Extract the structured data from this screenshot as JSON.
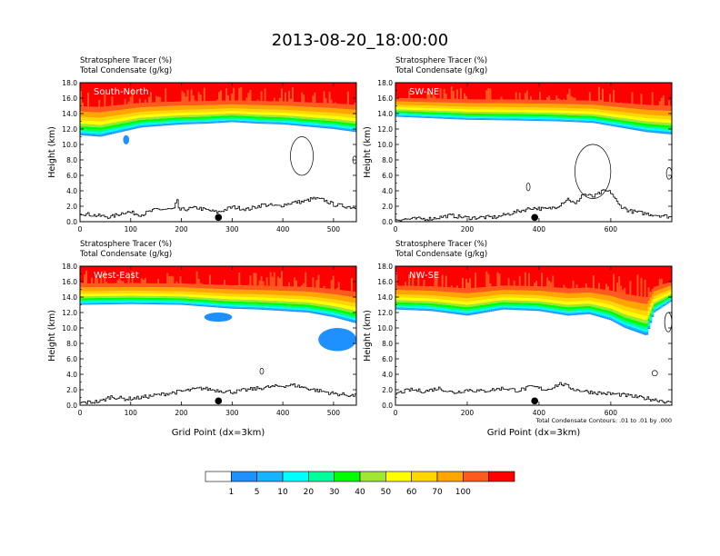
{
  "title": "2013-08-20_18:00:00",
  "colors": {
    "bands": [
      "#ffffff",
      "#1e90ff",
      "#14b4ff",
      "#00ffff",
      "#00ff9c",
      "#00ff00",
      "#a0e632",
      "#ffff00",
      "#ffd700",
      "#ffa500",
      "#ff5a1e",
      "#ff0000"
    ]
  },
  "chart_data": [
    {
      "type": "heatmap",
      "panel_label": "South-North",
      "subtitle_line1": "Stratosphere Tracer   (%)",
      "subtitle_line2": "Total Condensate   (g/kg)",
      "ylabel": "Height (km)",
      "xlabel": "",
      "xlim": [
        0,
        545
      ],
      "ylim": [
        0,
        18
      ],
      "xticks": [
        0,
        100,
        200,
        300,
        400,
        500
      ],
      "yticks": [
        "0.0",
        "2.0",
        "4.0",
        "6.0",
        "8.0",
        "10.0",
        "12.0",
        "14.0",
        "16.0",
        "18.0"
      ],
      "tracer_base_km": [
        [
          0,
          11.2
        ],
        [
          40,
          11.0
        ],
        [
          80,
          11.6
        ],
        [
          120,
          12.2
        ],
        [
          200,
          12.6
        ],
        [
          250,
          12.7
        ],
        [
          300,
          12.9
        ],
        [
          350,
          12.7
        ],
        [
          400,
          12.6
        ],
        [
          450,
          12.3
        ],
        [
          500,
          12.0
        ],
        [
          545,
          11.6
        ]
      ],
      "tracer_top_km": [
        [
          0,
          16.2
        ],
        [
          100,
          16.5
        ],
        [
          300,
          16.8
        ],
        [
          545,
          16.5
        ]
      ],
      "terrain_km": [
        [
          0,
          1.1
        ],
        [
          30,
          0.8
        ],
        [
          60,
          0.6
        ],
        [
          90,
          1.3
        ],
        [
          120,
          0.9
        ],
        [
          150,
          1.6
        ],
        [
          185,
          1.6
        ],
        [
          190,
          2.8
        ],
        [
          195,
          1.5
        ],
        [
          230,
          1.8
        ],
        [
          270,
          1.2
        ],
        [
          300,
          1.9
        ],
        [
          330,
          1.6
        ],
        [
          360,
          2.2
        ],
        [
          390,
          2.0
        ],
        [
          420,
          2.5
        ],
        [
          440,
          2.6
        ],
        [
          460,
          3.0
        ],
        [
          480,
          2.8
        ],
        [
          500,
          2.2
        ],
        [
          545,
          1.8
        ]
      ],
      "condensate_features": [
        {
          "kind": "cloud",
          "x": [
            85,
            97
          ],
          "z": [
            10.0,
            11.2
          ]
        },
        {
          "kind": "contour",
          "x": [
            415,
            460
          ],
          "z": [
            6.0,
            11.0
          ]
        },
        {
          "kind": "contour",
          "x": [
            538,
            545
          ],
          "z": [
            7.5,
            8.5
          ]
        }
      ],
      "marker_x": 273
    },
    {
      "type": "heatmap",
      "panel_label": "SW-NE",
      "subtitle_line1": "Stratosphere Tracer   (%)",
      "subtitle_line2": "Total Condensate   (g/kg)",
      "ylabel": "Height (km)",
      "xlabel": "",
      "xlim": [
        0,
        770
      ],
      "ylim": [
        0,
        18
      ],
      "xticks": [
        0,
        200,
        400,
        600
      ],
      "yticks": [
        "0.0",
        "2.0",
        "4.0",
        "6.0",
        "8.0",
        "10.0",
        "12.0",
        "14.0",
        "16.0",
        "18.0"
      ],
      "tracer_base_km": [
        [
          0,
          13.6
        ],
        [
          100,
          13.4
        ],
        [
          200,
          13.2
        ],
        [
          350,
          13.1
        ],
        [
          450,
          13.0
        ],
        [
          550,
          12.8
        ],
        [
          600,
          12.4
        ],
        [
          650,
          12.0
        ],
        [
          700,
          11.6
        ],
        [
          770,
          11.3
        ]
      ],
      "tracer_top_km": [
        [
          0,
          16.6
        ],
        [
          300,
          16.8
        ],
        [
          770,
          16.4
        ]
      ],
      "terrain_km": [
        [
          0,
          0.3
        ],
        [
          100,
          0.4
        ],
        [
          150,
          0.8
        ],
        [
          200,
          0.5
        ],
        [
          280,
          0.6
        ],
        [
          330,
          1.2
        ],
        [
          380,
          1.8
        ],
        [
          420,
          1.6
        ],
        [
          450,
          2.0
        ],
        [
          480,
          3.0
        ],
        [
          500,
          2.2
        ],
        [
          520,
          3.6
        ],
        [
          550,
          3.2
        ],
        [
          580,
          4.0
        ],
        [
          600,
          3.8
        ],
        [
          620,
          2.2
        ],
        [
          650,
          1.4
        ],
        [
          700,
          1.0
        ],
        [
          740,
          0.8
        ],
        [
          770,
          0.6
        ]
      ],
      "condensate_features": [
        {
          "kind": "contour",
          "x": [
            365,
            375
          ],
          "z": [
            4.0,
            5.0
          ]
        },
        {
          "kind": "contour",
          "x": [
            500,
            600
          ],
          "z": [
            3.0,
            10.0
          ]
        },
        {
          "kind": "contour",
          "x": [
            755,
            770
          ],
          "z": [
            5.5,
            7.0
          ]
        }
      ],
      "marker_x": 388
    },
    {
      "type": "heatmap",
      "panel_label": "West-East",
      "subtitle_line1": "Stratosphere Tracer   (%)",
      "subtitle_line2": "Total Condensate   (g/kg)",
      "ylabel": "Height (km)",
      "xlabel": "Grid Point (dx=3km)",
      "xlim": [
        0,
        545
      ],
      "ylim": [
        0,
        18
      ],
      "xticks": [
        0,
        100,
        200,
        300,
        400,
        500
      ],
      "yticks": [
        "0.0",
        "2.0",
        "4.0",
        "6.0",
        "8.0",
        "10.0",
        "12.0",
        "14.0",
        "16.0",
        "18.0"
      ],
      "tracer_base_km": [
        [
          0,
          13.0
        ],
        [
          100,
          13.1
        ],
        [
          200,
          13.0
        ],
        [
          260,
          12.7
        ],
        [
          300,
          12.5
        ],
        [
          350,
          12.4
        ],
        [
          400,
          12.2
        ],
        [
          450,
          12.0
        ],
        [
          500,
          11.4
        ],
        [
          545,
          10.6
        ]
      ],
      "tracer_top_km": [
        [
          0,
          16.3
        ],
        [
          200,
          16.6
        ],
        [
          545,
          16.3
        ]
      ],
      "terrain_km": [
        [
          0,
          0.3
        ],
        [
          40,
          0.5
        ],
        [
          60,
          1.1
        ],
        [
          90,
          0.8
        ],
        [
          120,
          1.0
        ],
        [
          160,
          1.4
        ],
        [
          200,
          1.8
        ],
        [
          240,
          2.2
        ],
        [
          260,
          2.0
        ],
        [
          300,
          1.7
        ],
        [
          340,
          2.1
        ],
        [
          380,
          2.4
        ],
        [
          420,
          2.6
        ],
        [
          460,
          2.0
        ],
        [
          500,
          1.5
        ],
        [
          545,
          1.2
        ]
      ],
      "condensate_features": [
        {
          "kind": "cloud",
          "x": [
            245,
            300
          ],
          "z": [
            10.8,
            12.0
          ]
        },
        {
          "kind": "cloud",
          "x": [
            470,
            545
          ],
          "z": [
            7.0,
            10.0
          ]
        },
        {
          "kind": "contour",
          "x": [
            355,
            362
          ],
          "z": [
            4.0,
            4.8
          ]
        }
      ],
      "marker_x": 273
    },
    {
      "type": "heatmap",
      "panel_label": "NW-SE",
      "subtitle_line1": "Stratosphere Tracer   (%)",
      "subtitle_line2": "Total Condensate   (g/kg)",
      "ylabel": "Height (km)",
      "xlabel": "Grid Point (dx=3km)",
      "note": "Total Condensate Contours: .01 to .01 by .000",
      "xlim": [
        0,
        770
      ],
      "ylim": [
        0,
        18
      ],
      "xticks": [
        0,
        200,
        400,
        600
      ],
      "yticks": [
        "0.0",
        "2.0",
        "4.0",
        "6.0",
        "8.0",
        "10.0",
        "12.0",
        "14.0",
        "16.0",
        "18.0"
      ],
      "tracer_base_km": [
        [
          0,
          12.4
        ],
        [
          100,
          12.2
        ],
        [
          200,
          11.6
        ],
        [
          300,
          12.4
        ],
        [
          400,
          12.2
        ],
        [
          480,
          11.6
        ],
        [
          540,
          11.8
        ],
        [
          600,
          11.0
        ],
        [
          640,
          10.0
        ],
        [
          700,
          9.0
        ],
        [
          720,
          12.0
        ],
        [
          770,
          13.5
        ]
      ],
      "tracer_top_km": [
        [
          0,
          16.4
        ],
        [
          400,
          16.6
        ],
        [
          770,
          16.2
        ]
      ],
      "terrain_km": [
        [
          0,
          1.5
        ],
        [
          40,
          2.0
        ],
        [
          80,
          1.8
        ],
        [
          120,
          2.2
        ],
        [
          160,
          1.6
        ],
        [
          200,
          2.0
        ],
        [
          240,
          1.8
        ],
        [
          300,
          2.2
        ],
        [
          340,
          1.9
        ],
        [
          380,
          2.4
        ],
        [
          420,
          2.0
        ],
        [
          460,
          2.8
        ],
        [
          500,
          2.0
        ],
        [
          560,
          1.6
        ],
        [
          620,
          1.4
        ],
        [
          680,
          1.0
        ],
        [
          740,
          0.6
        ],
        [
          770,
          0.2
        ]
      ],
      "condensate_features": [
        {
          "kind": "contour",
          "x": [
            715,
            730
          ],
          "z": [
            3.8,
            4.5
          ]
        },
        {
          "kind": "contour",
          "x": [
            750,
            770
          ],
          "z": [
            9.5,
            12.0
          ]
        }
      ],
      "marker_x": 388
    }
  ],
  "legend": {
    "labels": [
      "1",
      "5",
      "10",
      "20",
      "30",
      "40",
      "50",
      "60",
      "70",
      "100"
    ]
  }
}
